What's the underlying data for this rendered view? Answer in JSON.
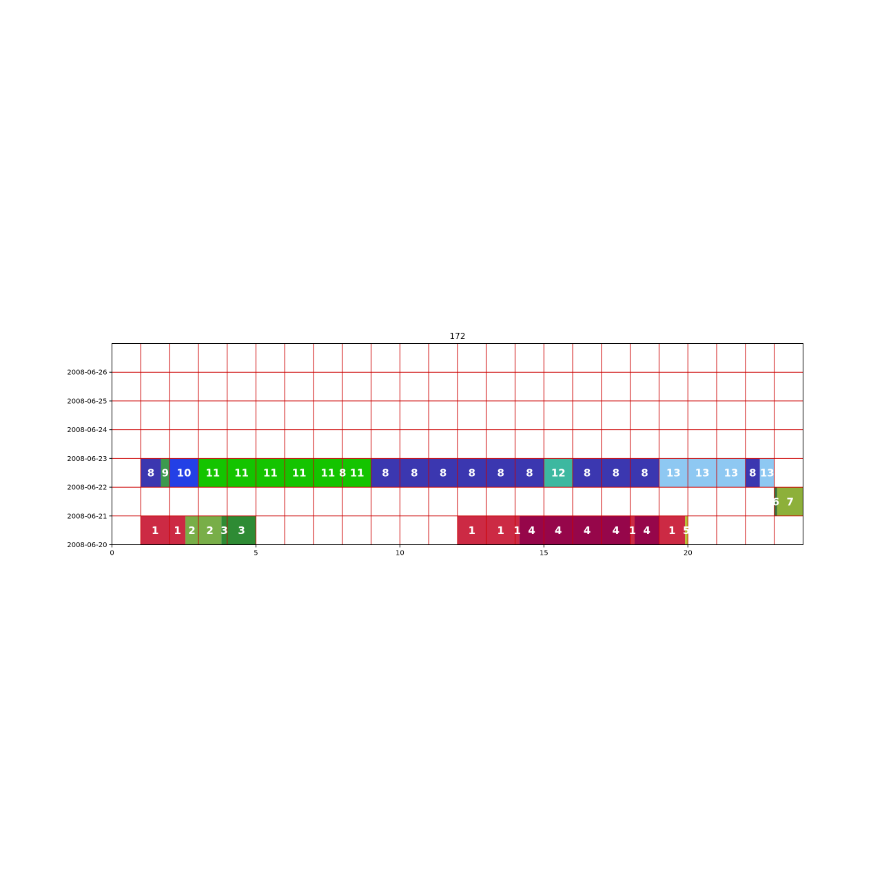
{
  "chart_data": {
    "type": "timeline",
    "title": "172",
    "xlabel": "",
    "ylabel": "",
    "xlim": [
      0,
      24
    ],
    "x_ticks": [
      0,
      5,
      10,
      15,
      20
    ],
    "y_ticks": [
      "2008-06-20",
      "2008-06-21",
      "2008-06-22",
      "2008-06-23",
      "2008-06-24",
      "2008-06-25",
      "2008-06-26"
    ],
    "ylim": [
      "2008-06-20",
      "2008-06-27"
    ],
    "grid": true,
    "grid_color": "#cc0000",
    "rows": [
      {
        "date": "2008-06-20",
        "segments": [
          {
            "start": 1.0,
            "end": 2.0,
            "label": "1",
            "color": "#cc2a44"
          },
          {
            "start": 2.0,
            "end": 2.55,
            "label": "1",
            "color": "#cc2a44"
          },
          {
            "start": 2.55,
            "end": 3.0,
            "label": "2",
            "color": "#78ae48"
          },
          {
            "start": 3.0,
            "end": 3.8,
            "label": "2",
            "color": "#78ae48"
          },
          {
            "start": 3.8,
            "end": 4.0,
            "label": "3",
            "color": "#2e8b34"
          },
          {
            "start": 4.0,
            "end": 5.0,
            "label": "3",
            "color": "#2e8b34"
          },
          {
            "start": 12.0,
            "end": 13.0,
            "label": "1",
            "color": "#cc2a44"
          },
          {
            "start": 13.0,
            "end": 14.0,
            "label": "1",
            "color": "#cc2a44"
          },
          {
            "start": 14.0,
            "end": 14.15,
            "label": "1",
            "color": "#cc2a44"
          },
          {
            "start": 14.15,
            "end": 15.0,
            "label": "4",
            "color": "#96064a"
          },
          {
            "start": 15.0,
            "end": 16.0,
            "label": "4",
            "color": "#96064a"
          },
          {
            "start": 16.0,
            "end": 17.0,
            "label": "4",
            "color": "#96064a"
          },
          {
            "start": 17.0,
            "end": 18.0,
            "label": "4",
            "color": "#96064a"
          },
          {
            "start": 18.0,
            "end": 18.15,
            "label": "1",
            "color": "#cc2a44"
          },
          {
            "start": 18.15,
            "end": 19.0,
            "label": "4",
            "color": "#96064a"
          },
          {
            "start": 19.0,
            "end": 19.9,
            "label": "1",
            "color": "#cc2a44"
          },
          {
            "start": 19.9,
            "end": 20.0,
            "label": "5",
            "color": "#b5c234"
          }
        ]
      },
      {
        "date": "2008-06-21",
        "segments": [
          {
            "start": 23.0,
            "end": 23.1,
            "label": "6",
            "color": "#3d6e3a"
          },
          {
            "start": 23.1,
            "end": 24.0,
            "label": "7",
            "color": "#8db03a"
          }
        ]
      },
      {
        "date": "2008-06-22",
        "segments": [
          {
            "start": 1.0,
            "end": 1.7,
            "label": "8",
            "color": "#3b37b0"
          },
          {
            "start": 1.7,
            "end": 2.0,
            "label": "9",
            "color": "#3d9a4e"
          },
          {
            "start": 2.0,
            "end": 3.0,
            "label": "10",
            "color": "#2340e6"
          },
          {
            "start": 3.0,
            "end": 4.0,
            "label": "11",
            "color": "#14c400"
          },
          {
            "start": 4.0,
            "end": 5.0,
            "label": "11",
            "color": "#14c400"
          },
          {
            "start": 5.0,
            "end": 6.0,
            "label": "11",
            "color": "#14c400"
          },
          {
            "start": 6.0,
            "end": 7.0,
            "label": "11",
            "color": "#14c400"
          },
          {
            "start": 7.0,
            "end": 8.0,
            "label": "11",
            "color": "#14c400"
          },
          {
            "start": 8.0,
            "end": 8.02,
            "label": "8",
            "color": "#3b37b0"
          },
          {
            "start": 8.02,
            "end": 9.0,
            "label": "11",
            "color": "#14c400"
          },
          {
            "start": 9.0,
            "end": 10.0,
            "label": "8",
            "color": "#3b37b0"
          },
          {
            "start": 10.0,
            "end": 11.0,
            "label": "8",
            "color": "#3b37b0"
          },
          {
            "start": 11.0,
            "end": 12.0,
            "label": "8",
            "color": "#3b37b0"
          },
          {
            "start": 12.0,
            "end": 13.0,
            "label": "8",
            "color": "#3b37b0"
          },
          {
            "start": 13.0,
            "end": 14.0,
            "label": "8",
            "color": "#3b37b0"
          },
          {
            "start": 14.0,
            "end": 15.0,
            "label": "8",
            "color": "#3b37b0"
          },
          {
            "start": 15.0,
            "end": 16.0,
            "label": "12",
            "color": "#3db8a0"
          },
          {
            "start": 16.0,
            "end": 17.0,
            "label": "8",
            "color": "#3b37b0"
          },
          {
            "start": 17.0,
            "end": 18.0,
            "label": "8",
            "color": "#3b37b0"
          },
          {
            "start": 18.0,
            "end": 19.0,
            "label": "8",
            "color": "#3b37b0"
          },
          {
            "start": 19.0,
            "end": 20.0,
            "label": "13",
            "color": "#8ec8f2"
          },
          {
            "start": 20.0,
            "end": 21.0,
            "label": "13",
            "color": "#8ec8f2"
          },
          {
            "start": 21.0,
            "end": 22.0,
            "label": "13",
            "color": "#8ec8f2"
          },
          {
            "start": 22.0,
            "end": 22.5,
            "label": "8",
            "color": "#3b37b0"
          },
          {
            "start": 22.5,
            "end": 23.0,
            "label": "13",
            "color": "#8ec8f2"
          }
        ]
      }
    ]
  }
}
